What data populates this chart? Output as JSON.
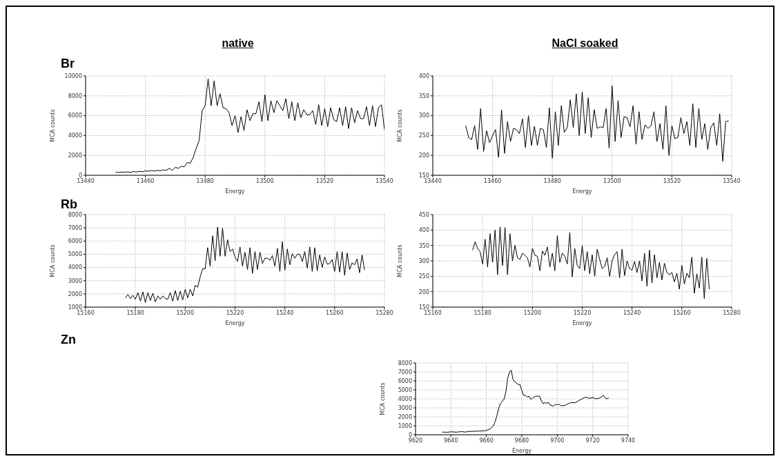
{
  "chart_data": [
    {
      "type": "line",
      "title": "native",
      "annotations": [
        "Br"
      ],
      "xlabel": "Energy",
      "ylabel": "MCA counts",
      "xlim": [
        13440,
        13540
      ],
      "xticks": [
        13440,
        13460,
        13480,
        13500,
        13520,
        13540
      ],
      "ylim": [
        0,
        10000
      ],
      "yticks": [
        0,
        2000,
        4000,
        6000,
        8000,
        10000
      ],
      "grid": true,
      "marker": "none",
      "line_style": "solid",
      "series": [
        {
          "color": "#000000",
          "x": [
            13450,
            13451,
            13452,
            13453,
            13454,
            13455,
            13456,
            13457,
            13458,
            13459,
            13460,
            13461,
            13462,
            13463,
            13464,
            13465,
            13466,
            13467,
            13468,
            13469,
            13470,
            13471,
            13472,
            13473,
            13474,
            13475,
            13476,
            13477,
            13478,
            13479,
            13480,
            13481,
            13482,
            13483,
            13484,
            13485,
            13486,
            13487,
            13488,
            13489,
            13490,
            13491,
            13492,
            13493,
            13494,
            13495,
            13496,
            13497,
            13498,
            13499,
            13500,
            13501,
            13502,
            13503,
            13504,
            13505,
            13506,
            13507,
            13508,
            13509,
            13510,
            13511,
            13512,
            13513,
            13514,
            13515,
            13516,
            13517,
            13518,
            13519,
            13520,
            13521,
            13522,
            13523,
            13524,
            13525,
            13526,
            13527,
            13528,
            13529,
            13530,
            13531,
            13532,
            13533,
            13534,
            13535,
            13536,
            13537,
            13538,
            13539,
            13540
          ],
          "values": [
            300,
            280,
            320,
            300,
            350,
            280,
            380,
            330,
            400,
            350,
            450,
            400,
            480,
            420,
            500,
            450,
            550,
            500,
            700,
            500,
            800,
            700,
            900,
            850,
            1300,
            1200,
            1800,
            2700,
            3500,
            6500,
            7000,
            9700,
            7000,
            9500,
            7000,
            8200,
            6800,
            6700,
            6300,
            5000,
            6000,
            4300,
            5900,
            4500,
            6600,
            5500,
            6200,
            6200,
            7400,
            5400,
            8100,
            5500,
            7500,
            6300,
            7500,
            7000,
            6500,
            7700,
            5700,
            7400,
            5500,
            7300,
            5800,
            6600,
            6100,
            6100,
            6500,
            5100,
            7100,
            5000,
            6700,
            4900,
            6800,
            5600,
            5400,
            6800,
            5000,
            6900,
            4700,
            6800,
            5300,
            6500,
            5700,
            5700,
            6900,
            5000,
            7000,
            4900,
            6800,
            7100,
            4600
          ]
        }
      ]
    },
    {
      "type": "line",
      "title": "NaCl soaked",
      "xlabel": "Energy",
      "ylabel": "MCA counts",
      "xlim": [
        13440,
        13540
      ],
      "xticks": [
        13440,
        13460,
        13480,
        13500,
        13520,
        13540
      ],
      "ylim": [
        150,
        400
      ],
      "yticks": [
        150,
        200,
        250,
        300,
        350,
        400
      ],
      "grid": true,
      "marker": "none",
      "line_style": "solid",
      "series": [
        {
          "color": "#000000",
          "x": [
            13451,
            13452,
            13453,
            13454,
            13455,
            13456,
            13457,
            13458,
            13459,
            13460,
            13461,
            13462,
            13463,
            13464,
            13465,
            13466,
            13467,
            13468,
            13469,
            13470,
            13471,
            13472,
            13473,
            13474,
            13475,
            13476,
            13477,
            13478,
            13479,
            13480,
            13481,
            13482,
            13483,
            13484,
            13485,
            13486,
            13487,
            13488,
            13489,
            13490,
            13491,
            13492,
            13493,
            13494,
            13495,
            13496,
            13497,
            13498,
            13499,
            13500,
            13501,
            13502,
            13503,
            13504,
            13505,
            13506,
            13507,
            13508,
            13509,
            13510,
            13511,
            13512,
            13513,
            13514,
            13515,
            13516,
            13517,
            13518,
            13519,
            13520,
            13521,
            13522,
            13523,
            13524,
            13525,
            13526,
            13527,
            13528,
            13529,
            13530,
            13531,
            13532,
            13533,
            13534,
            13535,
            13536,
            13537,
            13538,
            13539
          ],
          "values": [
            275,
            245,
            240,
            275,
            215,
            318,
            210,
            262,
            232,
            250,
            265,
            195,
            315,
            205,
            285,
            235,
            268,
            265,
            255,
            292,
            220,
            300,
            225,
            273,
            225,
            268,
            265,
            220,
            320,
            193,
            310,
            225,
            325,
            258,
            270,
            340,
            270,
            355,
            250,
            360,
            255,
            345,
            245,
            315,
            268,
            272,
            270,
            318,
            218,
            375,
            235,
            338,
            245,
            297,
            295,
            272,
            325,
            228,
            310,
            240,
            277,
            268,
            275,
            310,
            235,
            280,
            215,
            325,
            200,
            275,
            242,
            245,
            295,
            255,
            285,
            225,
            330,
            220,
            318,
            240,
            280,
            215,
            270,
            282,
            225,
            305,
            185,
            285,
            287
          ]
        }
      ]
    },
    {
      "type": "line",
      "annotations": [
        "Rb"
      ],
      "xlabel": "Energy",
      "ylabel": "MCA counts",
      "xlim": [
        15160,
        15280
      ],
      "xticks": [
        15160,
        15180,
        15200,
        15220,
        15240,
        15260,
        15280
      ],
      "ylim": [
        1000,
        8000
      ],
      "yticks": [
        1000,
        2000,
        3000,
        4000,
        5000,
        6000,
        7000,
        8000
      ],
      "grid": true,
      "marker": "none",
      "line_style": "solid",
      "series": [
        {
          "color": "#000000",
          "x": [
            15176,
            15177,
            15178,
            15179,
            15180,
            15181,
            15182,
            15183,
            15184,
            15185,
            15186,
            15187,
            15188,
            15189,
            15190,
            15191,
            15192,
            15193,
            15194,
            15195,
            15196,
            15197,
            15198,
            15199,
            15200,
            15201,
            15202,
            15203,
            15204,
            15205,
            15206,
            15207,
            15208,
            15209,
            15210,
            15211,
            15212,
            15213,
            15214,
            15215,
            15216,
            15217,
            15218,
            15219,
            15220,
            15221,
            15222,
            15223,
            15224,
            15225,
            15226,
            15227,
            15228,
            15229,
            15230,
            15231,
            15232,
            15233,
            15234,
            15235,
            15236,
            15237,
            15238,
            15239,
            15240,
            15241,
            15242,
            15243,
            15244,
            15245,
            15246,
            15247,
            15248,
            15249,
            15250,
            15251,
            15252,
            15253,
            15254,
            15255,
            15256,
            15257,
            15258,
            15259,
            15260,
            15261,
            15262,
            15263,
            15264,
            15265,
            15266,
            15267,
            15268,
            15269,
            15270,
            15271,
            15272
          ],
          "values": [
            1700,
            1950,
            1650,
            1900,
            1600,
            2100,
            1450,
            2150,
            1350,
            2100,
            1500,
            2050,
            1400,
            1850,
            1600,
            1850,
            1650,
            1600,
            2100,
            1450,
            2250,
            1500,
            2200,
            1550,
            2350,
            1700,
            2350,
            1850,
            2650,
            2500,
            3300,
            3900,
            3900,
            5500,
            4100,
            6400,
            4500,
            7050,
            4850,
            7000,
            4850,
            6100,
            5200,
            5400,
            4800,
            4450,
            5550,
            4100,
            5150,
            3850,
            5500,
            3550,
            5200,
            3850,
            5150,
            4300,
            4700,
            4700,
            4550,
            4900,
            4100,
            5450,
            3700,
            5950,
            3800,
            5400,
            4200,
            5050,
            4700,
            5000,
            5000,
            4450,
            5200,
            3950,
            5550,
            3700,
            5500,
            3750,
            4950,
            4000,
            4800,
            4250,
            4300,
            4600,
            3700,
            5200,
            3650,
            5200,
            3400,
            5100,
            3850,
            4350,
            4200,
            4650,
            3600,
            4950,
            3800
          ]
        }
      ]
    },
    {
      "type": "line",
      "xlabel": "Energy",
      "ylabel": "MCA counts",
      "xlim": [
        15160,
        15280
      ],
      "xticks": [
        15160,
        15180,
        15200,
        15220,
        15240,
        15260,
        15280
      ],
      "ylim": [
        150,
        450
      ],
      "yticks": [
        150,
        200,
        250,
        300,
        350,
        400,
        450
      ],
      "grid": true,
      "marker": "none",
      "line_style": "solid",
      "series": [
        {
          "color": "#000000",
          "x": [
            15176,
            15177,
            15178,
            15179,
            15180,
            15181,
            15182,
            15183,
            15184,
            15185,
            15186,
            15187,
            15188,
            15189,
            15190,
            15191,
            15192,
            15193,
            15194,
            15195,
            15196,
            15197,
            15198,
            15199,
            15200,
            15201,
            15202,
            15203,
            15204,
            15205,
            15206,
            15207,
            15208,
            15209,
            15210,
            15211,
            15212,
            15213,
            15214,
            15215,
            15216,
            15217,
            15218,
            15219,
            15220,
            15221,
            15222,
            15223,
            15224,
            15225,
            15226,
            15227,
            15228,
            15229,
            15230,
            15231,
            15232,
            15233,
            15234,
            15235,
            15236,
            15237,
            15238,
            15239,
            15240,
            15241,
            15242,
            15243,
            15244,
            15245,
            15246,
            15247,
            15248,
            15249,
            15250,
            15251,
            15252,
            15253,
            15254,
            15255,
            15256,
            15257,
            15258,
            15259,
            15260,
            15261,
            15262,
            15263,
            15264,
            15265,
            15266,
            15267,
            15268,
            15269,
            15270,
            15271
          ],
          "values": [
            335,
            362,
            340,
            330,
            290,
            370,
            280,
            388,
            295,
            400,
            255,
            410,
            285,
            408,
            255,
            388,
            300,
            350,
            310,
            305,
            325,
            318,
            310,
            280,
            340,
            318,
            315,
            268,
            332,
            318,
            345,
            280,
            325,
            268,
            382,
            295,
            325,
            315,
            290,
            392,
            248,
            340,
            285,
            275,
            350,
            268,
            330,
            258,
            320,
            250,
            338,
            305,
            275,
            282,
            310,
            250,
            300,
            320,
            330,
            245,
            338,
            252,
            300,
            275,
            270,
            298,
            262,
            300,
            235,
            325,
            218,
            335,
            228,
            320,
            245,
            295,
            238,
            292,
            262,
            255,
            262,
            232,
            260,
            208,
            285,
            225,
            260,
            245,
            312,
            195,
            258,
            212,
            312,
            178,
            308,
            208
          ]
        }
      ]
    },
    {
      "type": "line",
      "annotations": [
        "Zn"
      ],
      "xlabel": "Energy",
      "ylabel": "MCA counts",
      "xlim": [
        9620,
        9740
      ],
      "xticks": [
        9620,
        9640,
        9660,
        9680,
        9700,
        9720,
        9740
      ],
      "ylim": [
        0,
        8000
      ],
      "yticks": [
        0,
        1000,
        2000,
        3000,
        4000,
        5000,
        6000,
        7000,
        8000
      ],
      "grid": true,
      "marker": "none",
      "line_style": "solid",
      "series": [
        {
          "color": "#000000",
          "x": [
            9635,
            9638,
            9640,
            9643,
            9646,
            9648,
            9650,
            9653,
            9656,
            9659,
            9660,
            9662,
            9664,
            9665,
            9666,
            9667,
            9668,
            9670,
            9671,
            9672,
            9673,
            9674,
            9675,
            9676,
            9678,
            9679,
            9680,
            9681,
            9682,
            9683,
            9684,
            9685,
            9686,
            9688,
            9690,
            9691,
            9692,
            9693,
            9694,
            9695,
            9696,
            9698,
            9699,
            9700,
            9701,
            9702,
            9704,
            9706,
            9708,
            9710,
            9712,
            9714,
            9716,
            9718,
            9720,
            9722,
            9724,
            9726,
            9727,
            9728,
            9729
          ],
          "values": [
            300,
            280,
            330,
            290,
            350,
            300,
            370,
            380,
            420,
            450,
            480,
            650,
            1000,
            1500,
            2200,
            3000,
            3500,
            4000,
            4800,
            6300,
            7000,
            7200,
            6200,
            5900,
            5600,
            5600,
            4900,
            4400,
            4400,
            4200,
            4300,
            3950,
            4100,
            4300,
            4300,
            3800,
            3450,
            3600,
            3500,
            3600,
            3300,
            3200,
            3400,
            3350,
            3400,
            3250,
            3250,
            3450,
            3600,
            3550,
            3800,
            4000,
            4200,
            4050,
            4150,
            4000,
            4100,
            4400,
            4100,
            4000,
            4100
          ]
        }
      ]
    }
  ]
}
